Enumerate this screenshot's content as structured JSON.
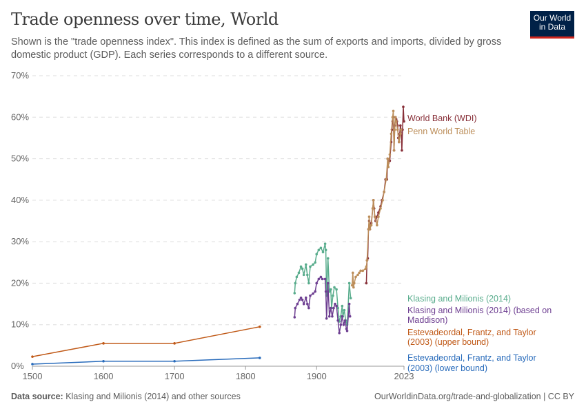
{
  "header": {
    "title": "Trade openness over time, World",
    "subtitle": "Shown is the \"trade openness index\". This index is defined as the sum of exports and imports, divided by gross domestic product (GDP). Each series corresponds to a different source.",
    "logo_text": "Our World in Data"
  },
  "footer": {
    "source_label": "Data source:",
    "source_text": "Klasing and Milionis (2014) and other sources",
    "license": "OurWorldinData.org/trade-and-globalization | CC BY"
  },
  "chart_data": {
    "type": "line",
    "title": "Trade openness over time, World",
    "xlim": [
      1500,
      2023
    ],
    "ylim": [
      0,
      70
    ],
    "x_ticks": [
      "1500",
      "1600",
      "1700",
      "1800",
      "1900",
      "2023"
    ],
    "y_ticks": [
      "0%",
      "10%",
      "20%",
      "30%",
      "40%",
      "50%",
      "60%",
      "70%"
    ],
    "grid": "horizontal dashed",
    "legend": "right, inline labels",
    "series": [
      {
        "name": "World Bank (WDI)",
        "color": "#883039",
        "x": [
          1970,
          1971,
          1972,
          1973,
          1974,
          1975,
          1976,
          1977,
          1979,
          1980,
          1981,
          1982,
          1983,
          1985,
          1987,
          1990,
          1992,
          1995,
          1997,
          1999,
          2000,
          2001,
          2003,
          2005,
          2006,
          2007,
          2008,
          2009,
          2010,
          2011,
          2012,
          2013,
          2014,
          2015,
          2016,
          2017,
          2018,
          2019,
          2020,
          2021,
          2022,
          2023
        ],
        "y": [
          20,
          25.5,
          26,
          33,
          35,
          33,
          34,
          34.5,
          38,
          40,
          38,
          36,
          35,
          36,
          37,
          38.5,
          40,
          42,
          45,
          45,
          50,
          49,
          49.5,
          54,
          57,
          59,
          60,
          52,
          58,
          60,
          59.5,
          59,
          58,
          55,
          54,
          56,
          58,
          57,
          52,
          57,
          62.5,
          59
        ]
      },
      {
        "name": "Penn World Table",
        "color": "#bc8e5a",
        "x": [
          1950,
          1951,
          1952,
          1953,
          1955,
          1958,
          1960,
          1962,
          1965,
          1969,
          1970,
          1971,
          1973,
          1974,
          1975,
          1977,
          1979,
          1980,
          1982,
          1985,
          1987,
          1990,
          1993,
          1995,
          1998,
          2000,
          2001,
          2003,
          2005,
          2007,
          2008,
          2009,
          2010,
          2011,
          2012,
          2014,
          2016,
          2018,
          2019
        ],
        "y": [
          19.5,
          22.5,
          19,
          20,
          21.5,
          22,
          22.5,
          23,
          23,
          23.5,
          24,
          25.5,
          33,
          36,
          33,
          34,
          38,
          40,
          36,
          34,
          36,
          38,
          40,
          42,
          45,
          50,
          48,
          51,
          56,
          60,
          61.5,
          52,
          57,
          60,
          59,
          57,
          54,
          56,
          57
        ]
      },
      {
        "name": "Klasing and Milionis (2014)",
        "color": "#58ac8c",
        "x": [
          1869,
          1870,
          1872,
          1875,
          1878,
          1880,
          1882,
          1885,
          1887,
          1889,
          1891,
          1895,
          1898,
          1900,
          1903,
          1906,
          1909,
          1912,
          1913,
          1914,
          1916,
          1918,
          1920,
          1921,
          1923,
          1925,
          1928,
          1930,
          1932,
          1934,
          1936,
          1937,
          1939,
          1941,
          1943,
          1946,
          1948
        ],
        "y": [
          17.6,
          20,
          21.5,
          22.5,
          24,
          23.5,
          22,
          24.5,
          22,
          20,
          24,
          24.5,
          25,
          27,
          28,
          28.5,
          27.5,
          29.5,
          28,
          17,
          26,
          18,
          18.5,
          14,
          17,
          19,
          18.5,
          14,
          10.8,
          12,
          14.5,
          12,
          13.5,
          11,
          10,
          20,
          16.4
        ]
      },
      {
        "name": "Klasing and Milionis (2014) (based on Maddison)",
        "color": "#6d3e91",
        "x": [
          1869,
          1870,
          1873,
          1876,
          1878,
          1880,
          1882,
          1885,
          1887,
          1889,
          1891,
          1895,
          1898,
          1900,
          1903,
          1906,
          1908,
          1912,
          1913,
          1914,
          1916,
          1918,
          1920,
          1922,
          1924,
          1926,
          1928,
          1930,
          1932,
          1934,
          1936,
          1938,
          1940,
          1942,
          1943,
          1946,
          1947
        ],
        "y": [
          11.8,
          14,
          15,
          16,
          16.5,
          16,
          15,
          16.5,
          15,
          14,
          17,
          17.5,
          18,
          20,
          21,
          21.5,
          21,
          21,
          18,
          11.5,
          20,
          12,
          14,
          12,
          14,
          15,
          14.5,
          11,
          8,
          10,
          12,
          10,
          11,
          9,
          8.5,
          15,
          12
        ]
      },
      {
        "name": "Estevadeordal, Frantz, and Taylor (2003) (upper bound)",
        "color": "#c05917",
        "x": [
          1500,
          1600,
          1700,
          1820
        ],
        "y": [
          2.3,
          5.5,
          5.5,
          9.5
        ]
      },
      {
        "name": "Estevadeordal, Frantz, and Taylor (2003) (lower bound)",
        "color": "#286bbb",
        "x": [
          1500,
          1600,
          1700,
          1820
        ],
        "y": [
          0.5,
          1.2,
          1.2,
          2.0
        ]
      }
    ]
  }
}
